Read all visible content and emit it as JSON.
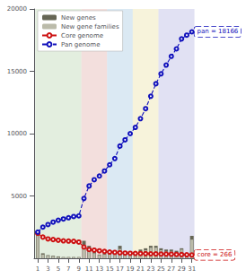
{
  "chart_data": {
    "type": "bar",
    "x": [
      1,
      2,
      3,
      4,
      5,
      6,
      7,
      8,
      9,
      10,
      11,
      12,
      13,
      14,
      15,
      16,
      17,
      18,
      19,
      20,
      21,
      22,
      23,
      24,
      25,
      26,
      27,
      28,
      29,
      30,
      31
    ],
    "xlim": [
      0.3,
      33.5
    ],
    "xticks": [
      1,
      3,
      5,
      7,
      9,
      11,
      13,
      15,
      17,
      19,
      21,
      23,
      25,
      27,
      29,
      31
    ],
    "ylim": [
      0,
      20000
    ],
    "yticks": [
      5000,
      10000,
      15000,
      20000
    ],
    "grid": false,
    "legend": "upper left",
    "series": [
      {
        "name": "New genes",
        "type": "bar",
        "color": "#666655",
        "values": [
          2100,
          400,
          250,
          200,
          150,
          100,
          100,
          100,
          100,
          1400,
          1000,
          500,
          300,
          400,
          500,
          500,
          1000,
          500,
          500,
          500,
          700,
          800,
          1000,
          1000,
          800,
          700,
          700,
          600,
          800,
          300,
          1800
        ]
      },
      {
        "name": "New gene families",
        "type": "bar",
        "color": "#bbbbaa",
        "values": [
          2000,
          300,
          200,
          150,
          100,
          80,
          80,
          80,
          80,
          1000,
          700,
          400,
          250,
          300,
          400,
          350,
          750,
          400,
          400,
          400,
          550,
          650,
          850,
          850,
          650,
          550,
          550,
          500,
          700,
          250,
          1500
        ]
      },
      {
        "name": "Core genome",
        "type": "line",
        "color": "#cc1111",
        "marker": "circle",
        "line_style": "solid",
        "values": [
          2000,
          1700,
          1550,
          1500,
          1450,
          1400,
          1380,
          1360,
          1300,
          900,
          700,
          650,
          600,
          550,
          500,
          470,
          440,
          420,
          400,
          390,
          380,
          370,
          360,
          350,
          340,
          335,
          330,
          310,
          295,
          280,
          266
        ]
      },
      {
        "name": "Pan genome",
        "type": "line",
        "color": "#1111bb",
        "marker": "circle",
        "line_style": "dashed",
        "values": [
          2100,
          2500,
          2700,
          2900,
          3050,
          3150,
          3250,
          3350,
          3400,
          4800,
          5800,
          6300,
          6600,
          7000,
          7500,
          8000,
          9000,
          9500,
          10000,
          10500,
          11200,
          12000,
          13000,
          14000,
          14800,
          15500,
          16200,
          16800,
          17600,
          17900,
          18166
        ]
      }
    ],
    "annotations": [
      {
        "text": "pan = 18166",
        "x": 31.5,
        "y": 18166,
        "color": "#1111bb"
      },
      {
        "text": "core = 266",
        "x": 31.5,
        "y": 266,
        "color": "#cc1111"
      }
    ],
    "regions": [
      {
        "xmin": 0.5,
        "xmax": 9.5,
        "color": "#c8ddc0"
      },
      {
        "xmin": 9.5,
        "xmax": 14.5,
        "color": "#e8c0bc"
      },
      {
        "xmin": 14.5,
        "xmax": 19.5,
        "color": "#b8d4e8"
      },
      {
        "xmin": 19.5,
        "xmax": 24.5,
        "color": "#f0e8b8"
      },
      {
        "xmin": 24.5,
        "xmax": 31.5,
        "color": "#c4c4e8"
      }
    ]
  }
}
